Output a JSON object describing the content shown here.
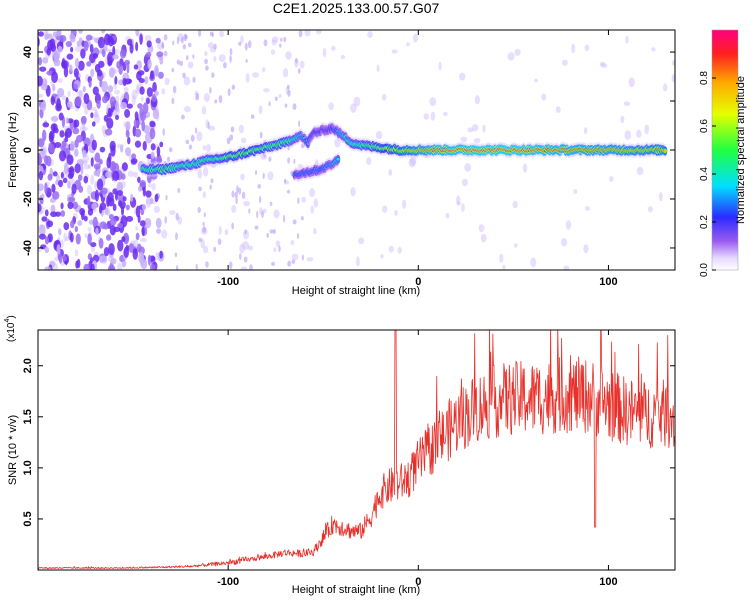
{
  "figure": {
    "title": "C2E1.2025.133.00.57.G07"
  },
  "colors": {
    "snr_line": "#e8302a",
    "ridge_palette": [
      "#8a2be2",
      "#2a2aff",
      "#00e5ff",
      "#33ff33",
      "#ffff00",
      "#ff8800",
      "#ff1010"
    ],
    "noise_speckle": "#7a3cf0"
  },
  "chart_data": [
    {
      "type": "heatmap",
      "xlabel": "Height of straight line (km)",
      "ylabel": "Frequency (Hz)",
      "xlim": [
        -200,
        135
      ],
      "ylim": [
        -49,
        49
      ],
      "xticks": [
        -100,
        0,
        100
      ],
      "xtick_labels": [
        "-100",
        "0",
        "100"
      ],
      "yticks": [
        -40,
        -20,
        0,
        20,
        40
      ],
      "ytick_labels": [
        "-40",
        "-20",
        "0",
        "20",
        "40"
      ],
      "grid": false,
      "colorbar": {
        "label": "Normalized spectral amplitude",
        "range": [
          0.0,
          1.0
        ],
        "ticks": [
          0.0,
          0.2,
          0.4,
          0.6,
          0.8
        ],
        "tick_labels": [
          "0.0",
          "0.2",
          "0.4",
          "0.6",
          "0.8"
        ],
        "placement": "right"
      },
      "ridge": {
        "note_for_renderer": "main spectral ridge: frequency vs height",
        "x": [
          -145,
          -135,
          -120,
          -110,
          -100,
          -90,
          -80,
          -70,
          -62,
          -58,
          -55,
          -50,
          -45,
          -40,
          -35,
          -30,
          -20,
          -10,
          0,
          10,
          30,
          50,
          70,
          90,
          110,
          130
        ],
        "y": [
          -8,
          -8,
          -6,
          -4,
          -3,
          -1,
          1,
          3,
          6,
          3,
          7,
          8,
          9,
          6,
          3,
          2,
          1,
          0,
          0,
          0,
          0,
          0,
          0,
          0,
          0,
          0
        ],
        "amplitude": [
          0.5,
          0.55,
          0.5,
          0.5,
          0.6,
          0.6,
          0.55,
          0.55,
          0.4,
          0.3,
          0.25,
          0.2,
          0.25,
          0.4,
          0.5,
          0.5,
          0.6,
          0.7,
          0.8,
          0.9,
          0.95,
          0.95,
          0.9,
          0.85,
          0.8,
          0.75
        ]
      },
      "branch": {
        "x": [
          -65,
          -58,
          -52,
          -46,
          -42
        ],
        "y": [
          -10,
          -9,
          -8,
          -6,
          -4
        ],
        "amplitude": [
          0.3,
          0.3,
          0.3,
          0.35,
          0.4
        ]
      }
    },
    {
      "type": "line",
      "xlabel": "Height of straight line (km)",
      "ylabel": "SNR (10 * v/v)",
      "y_multiplier_label": "(x10",
      "y_multiplier_exponent": "4",
      "y_multiplier_close": ")",
      "xlim": [
        -200,
        135
      ],
      "ylim": [
        0,
        23500
      ],
      "xticks": [
        -100,
        0,
        100
      ],
      "xtick_labels": [
        "-100",
        "0",
        "100"
      ],
      "yticks": [
        5000,
        10000,
        15000,
        20000
      ],
      "ytick_labels": [
        "0.5",
        "1.0",
        "1.5",
        "2.0"
      ],
      "grid": false,
      "series": [
        {
          "name": "",
          "color": "#e8302a",
          "trend_x": [
            -200,
            -160,
            -140,
            -120,
            -100,
            -80,
            -70,
            -60,
            -55,
            -50,
            -45,
            -40,
            -35,
            -30,
            -25,
            -20,
            -15,
            -10,
            -5,
            0,
            10,
            20,
            30,
            40,
            50,
            60,
            70,
            80,
            90,
            100,
            110,
            120,
            130,
            135
          ],
          "trend_y": [
            200,
            200,
            250,
            350,
            700,
            1300,
            1700,
            1600,
            1800,
            3200,
            4500,
            4200,
            3800,
            3800,
            5200,
            7500,
            8200,
            8500,
            9000,
            10500,
            12500,
            14500,
            15800,
            16500,
            16800,
            16800,
            17000,
            17200,
            17000,
            16200,
            15500,
            15200,
            15300,
            14900
          ],
          "spikes": [
            {
              "x": -12,
              "y": 23500
            },
            {
              "x": 93,
              "y": 4200
            },
            {
              "x": 96,
              "y": 23500
            }
          ]
        }
      ]
    }
  ]
}
